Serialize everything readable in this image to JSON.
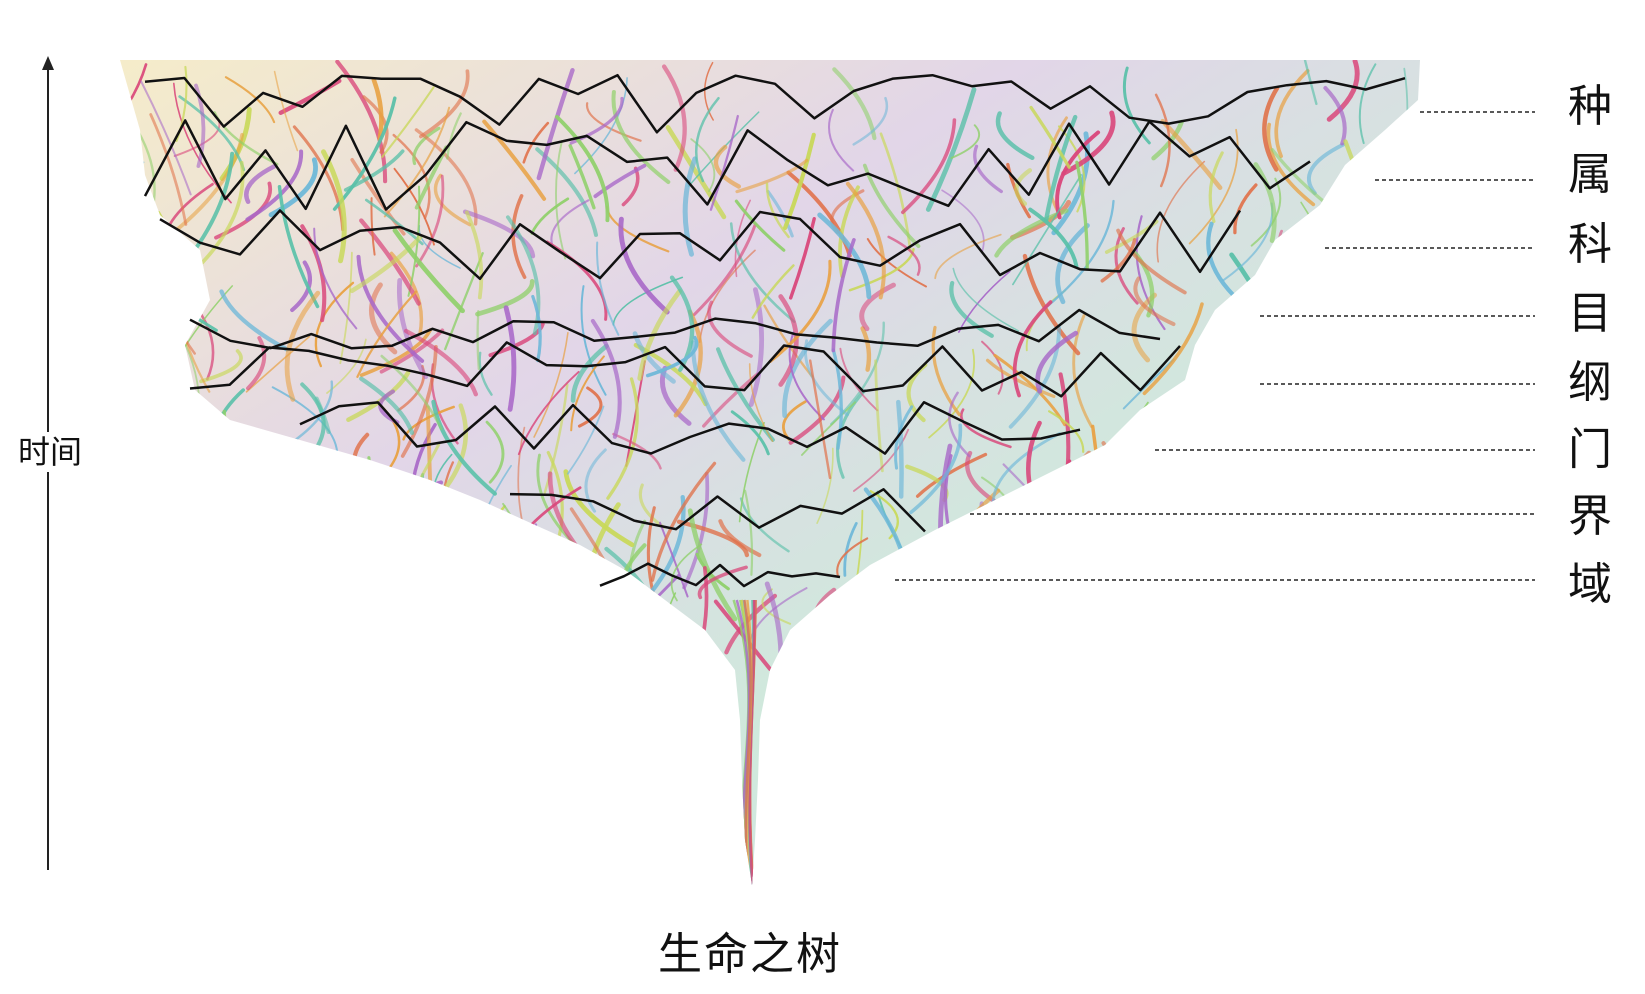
{
  "axis": {
    "label": "时间"
  },
  "ranks": [
    {
      "label": "种"
    },
    {
      "label": "属"
    },
    {
      "label": "科"
    },
    {
      "label": "目"
    },
    {
      "label": "纲"
    },
    {
      "label": "门"
    },
    {
      "label": "界"
    },
    {
      "label": "域"
    }
  ],
  "caption": "生命之树",
  "colors": {
    "branches": [
      "#d9467a",
      "#e8a040",
      "#6fb8d8",
      "#8fd06a",
      "#a868c8",
      "#e07048",
      "#58c0a8",
      "#c8d858"
    ],
    "lines": "#111111"
  }
}
